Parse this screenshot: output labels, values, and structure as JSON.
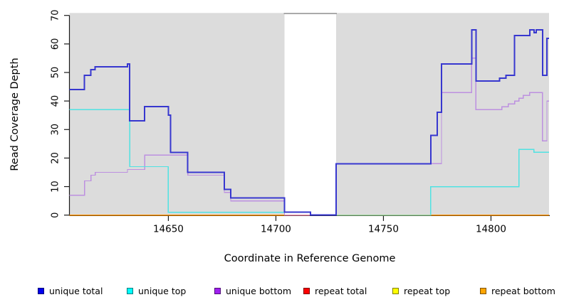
{
  "chart_data": {
    "type": "line",
    "subtype": "step-coverage-plot",
    "title": "",
    "xlabel": "Coordinate in Reference Genome",
    "ylabel": "Read Coverage Depth",
    "xlim": [
      14604,
      14827
    ],
    "ylim": [
      0,
      70
    ],
    "x_ticks": [
      14650,
      14700,
      14750,
      14800
    ],
    "y_ticks": [
      0,
      10,
      20,
      30,
      40,
      50,
      60,
      70
    ],
    "grid": "off",
    "plot_bg": "#dcdcdc",
    "axis_color": "#1a1a1a",
    "gap_band": {
      "x1": 14704,
      "x2": 14728,
      "fill": "#ffffff",
      "top_edge_color": "#8f8f8f"
    },
    "series": [
      {
        "name": "repeat total",
        "color": "#ff2020",
        "width": 1.3,
        "steps": [
          [
            14604,
            0
          ]
        ]
      },
      {
        "name": "repeat top",
        "color": "#ffff00",
        "width": 1.3,
        "steps": [
          [
            14604,
            0
          ]
        ]
      },
      {
        "name": "repeat bottom",
        "color": "#ff9405",
        "width": 1.7,
        "steps": [
          [
            14604,
            0
          ]
        ]
      },
      {
        "name": "unique bottom",
        "color": "#bd90e0",
        "width": 1.4,
        "steps": [
          [
            14604,
            7
          ],
          [
            14611,
            12
          ],
          [
            14614,
            14
          ],
          [
            14616,
            15
          ],
          [
            14631,
            16
          ],
          [
            14639,
            21
          ],
          [
            14659,
            14
          ],
          [
            14676,
            8
          ],
          [
            14679,
            5
          ],
          [
            14704,
            0
          ],
          [
            14728,
            18
          ],
          [
            14777,
            43
          ],
          [
            14791,
            55
          ],
          [
            14793,
            37
          ],
          [
            14805,
            38
          ],
          [
            14808,
            39
          ],
          [
            14811,
            40
          ],
          [
            14813,
            41
          ],
          [
            14815,
            42
          ],
          [
            14818,
            43
          ],
          [
            14824,
            26
          ],
          [
            14826,
            40
          ]
        ]
      },
      {
        "name": "unique top",
        "color": "#50e2e2",
        "width": 1.4,
        "steps": [
          [
            14604,
            37
          ],
          [
            14632,
            17
          ],
          [
            14650,
            1
          ],
          [
            14716,
            0
          ],
          [
            14772,
            10
          ],
          [
            14813,
            23
          ],
          [
            14820,
            22
          ]
        ]
      },
      {
        "name": "unique total",
        "color": "#3737cf",
        "width": 2,
        "steps": [
          [
            14604,
            44
          ],
          [
            14611,
            49
          ],
          [
            14614,
            51
          ],
          [
            14616,
            52
          ],
          [
            14631,
            53
          ],
          [
            14632,
            33
          ],
          [
            14639,
            38
          ],
          [
            14650,
            35
          ],
          [
            14651,
            22
          ],
          [
            14659,
            15
          ],
          [
            14676,
            9
          ],
          [
            14679,
            6
          ],
          [
            14704,
            1
          ],
          [
            14716,
            0
          ],
          [
            14728,
            18
          ],
          [
            14772,
            28
          ],
          [
            14775,
            36
          ],
          [
            14777,
            53
          ],
          [
            14791,
            65
          ],
          [
            14793,
            47
          ],
          [
            14804,
            48
          ],
          [
            14807,
            49
          ],
          [
            14811,
            63
          ],
          [
            14818,
            65
          ],
          [
            14820,
            64
          ],
          [
            14821,
            65
          ],
          [
            14824,
            49
          ],
          [
            14826,
            62
          ]
        ]
      }
    ],
    "overlap_segments": [
      {
        "x1": 14704,
        "x2": 14716,
        "y": 0,
        "color": "#ea8aa8",
        "note": "repeat-total/unique-bottom overlap at zero"
      },
      {
        "x1": 14728,
        "x2": 14772,
        "y": 0,
        "color": "#9dd79a",
        "note": "unique-top/repeat-top overlap at zero"
      }
    ],
    "legend": [
      {
        "label": "unique total",
        "fill": "#0000ee"
      },
      {
        "label": "unique top",
        "fill": "#00ffff"
      },
      {
        "label": "unique bottom",
        "fill": "#a020f0"
      },
      {
        "label": "repeat total",
        "fill": "#ff0000"
      },
      {
        "label": "repeat top",
        "fill": "#ffff00"
      },
      {
        "label": "repeat bottom",
        "fill": "#ffa500"
      }
    ]
  }
}
